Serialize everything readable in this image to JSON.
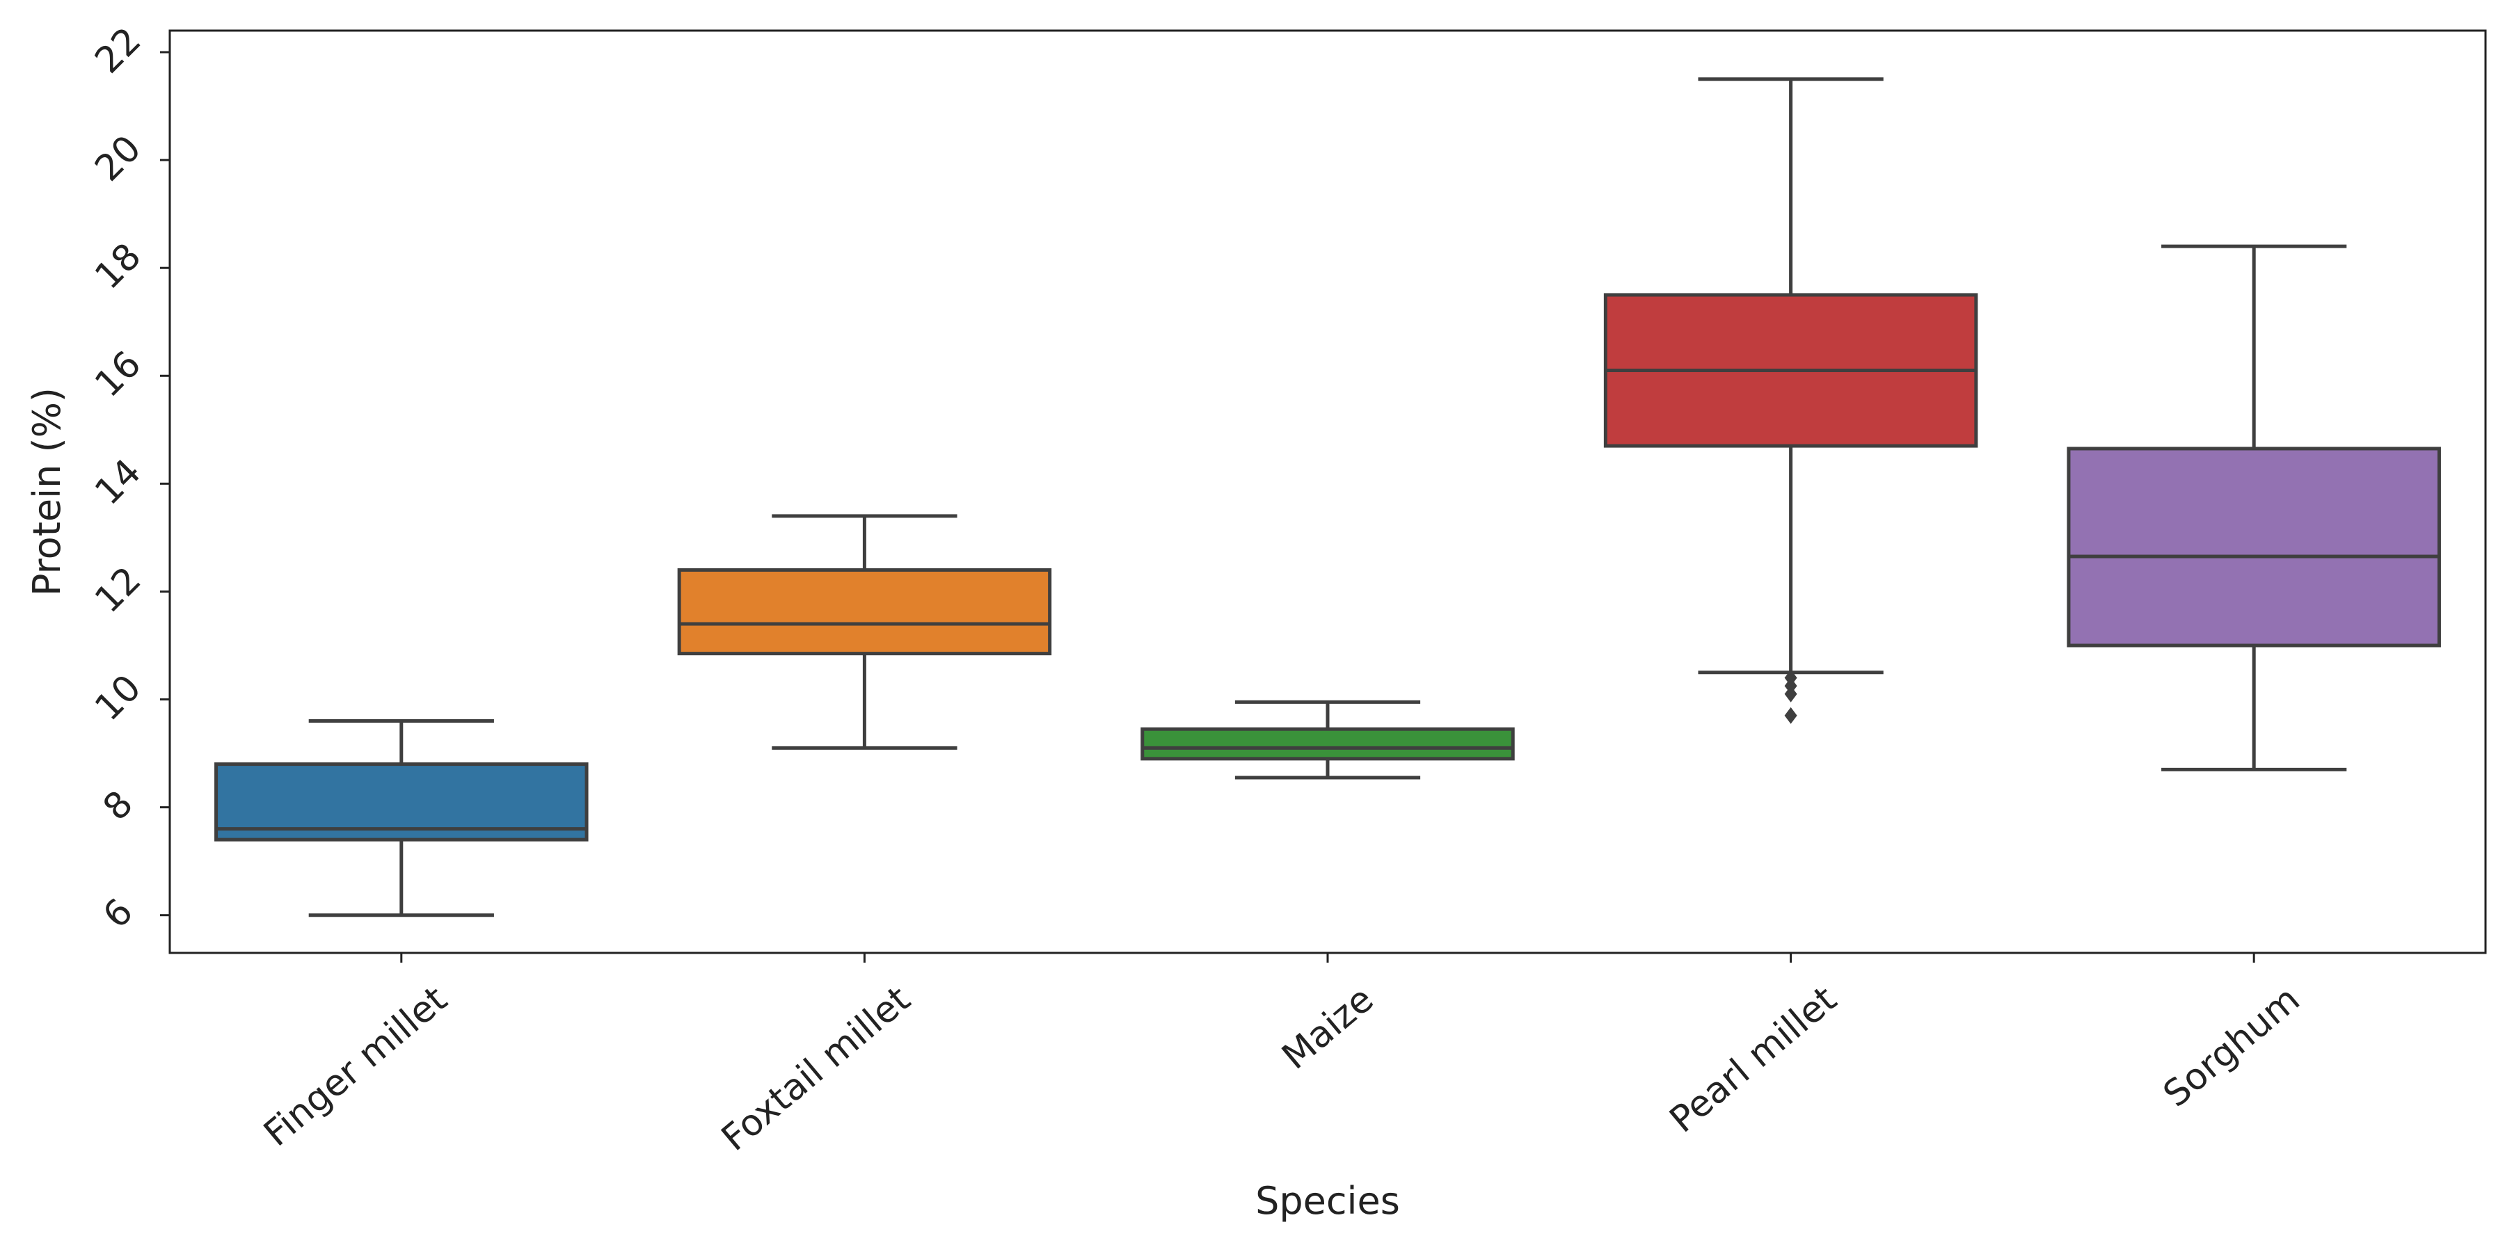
{
  "chart_data": {
    "type": "box",
    "title": "",
    "xlabel": "Species",
    "ylabel": "Protein (%)",
    "ylim": [
      5.3,
      22.4
    ],
    "yticks": [
      6,
      8,
      10,
      12,
      14,
      16,
      18,
      20,
      22
    ],
    "grid": false,
    "legend": "none",
    "categories": [
      "Finger millet",
      "Foxtail millet",
      "Maize",
      "Pearl millet",
      "Sorghum"
    ],
    "colors": [
      "#3274a1",
      "#e1812c",
      "#3a923a",
      "#c03d3e",
      "#9372b2"
    ],
    "boxes": [
      {
        "name": "Finger millet",
        "whisker_low": 6.0,
        "q1": 7.4,
        "median": 7.6,
        "q3": 8.8,
        "whisker_high": 9.6,
        "outliers": []
      },
      {
        "name": "Foxtail millet",
        "whisker_low": 9.1,
        "q1": 10.85,
        "median": 11.4,
        "q3": 12.4,
        "whisker_high": 13.4,
        "outliers": []
      },
      {
        "name": "Maize",
        "whisker_low": 8.55,
        "q1": 8.9,
        "median": 9.1,
        "q3": 9.45,
        "whisker_high": 9.95,
        "outliers": []
      },
      {
        "name": "Pearl millet",
        "whisker_low": 10.5,
        "q1": 14.7,
        "median": 16.1,
        "q3": 17.5,
        "whisker_high": 21.5,
        "outliers": [
          10.4,
          10.25,
          10.1,
          9.7
        ]
      },
      {
        "name": "Sorghum",
        "whisker_low": 8.7,
        "q1": 11.0,
        "median": 12.65,
        "q3": 14.65,
        "whisker_high": 18.4,
        "outliers": []
      }
    ]
  }
}
